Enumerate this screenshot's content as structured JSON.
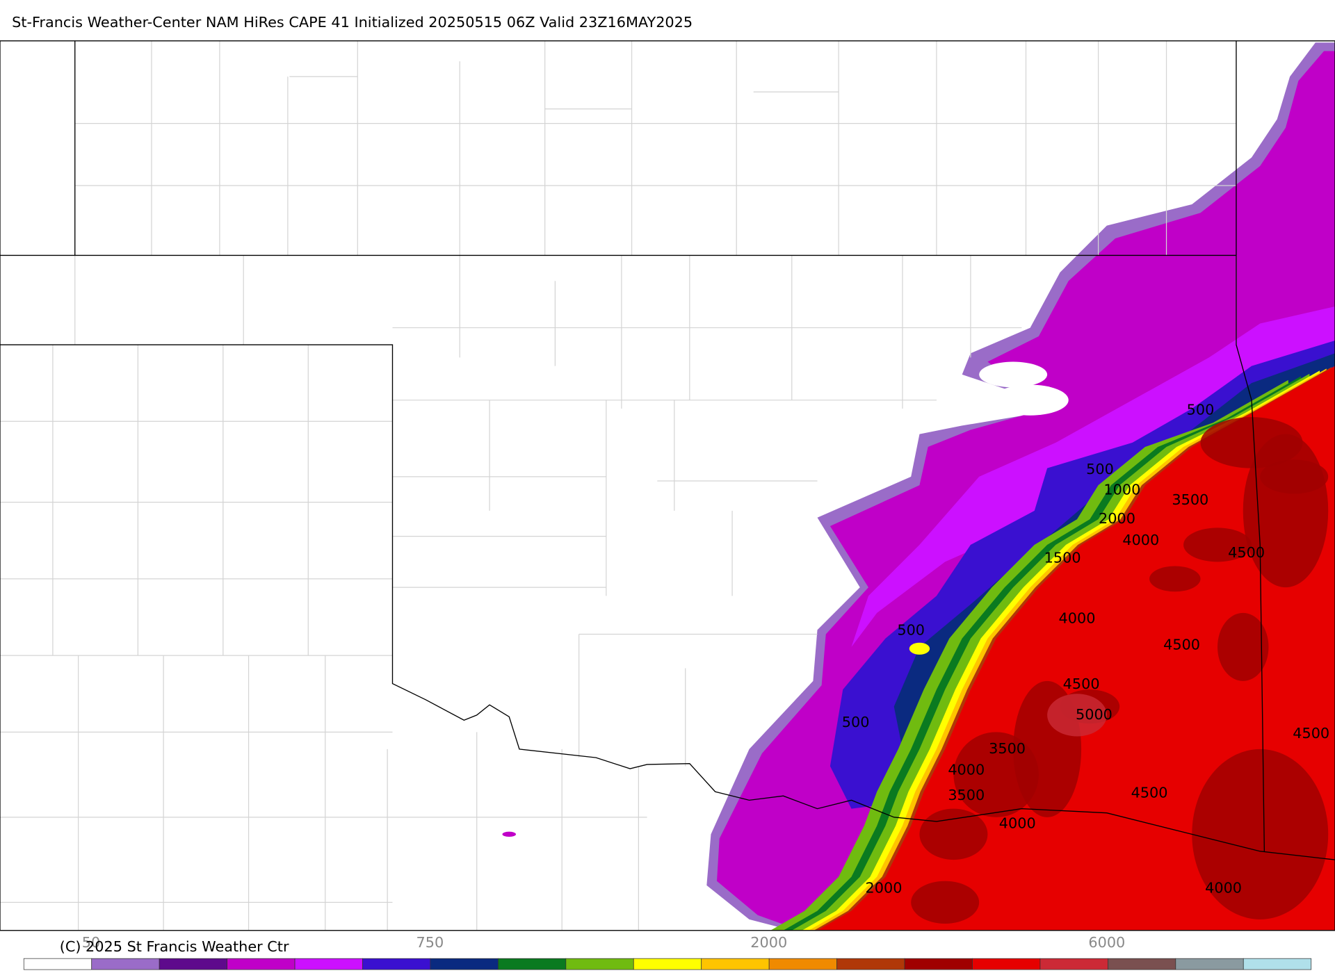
{
  "header": {
    "title": "St-Francis Weather-Center NAM HiRes CAPE  41 Initialized 20250515 06Z Valid 23Z16MAY2025"
  },
  "map": {
    "contour_labels": [
      500,
      500,
      1000,
      2000,
      3500,
      4000,
      4500,
      1500,
      4000,
      4500,
      500,
      4500,
      5000,
      4500,
      500,
      3500,
      4000,
      3500,
      4500,
      4000,
      2000,
      4000
    ]
  },
  "colorbar": {
    "colors": [
      "#ffffff",
      "#9a6cc8",
      "#5e0a8c",
      "#c000c8",
      "#cc10ff",
      "#3a10d0",
      "#0a2a80",
      "#0a7a20",
      "#70bb10",
      "#ffff00",
      "#ffc400",
      "#f08a00",
      "#b03808",
      "#a00000",
      "#e60000",
      "#cc2a36",
      "#7a5050",
      "#8a9aa0",
      "#b0e0ea"
    ],
    "labels": [
      50,
      750,
      2000,
      6000
    ]
  },
  "footer": {
    "copyright": "(C) 2025 St Francis Weather Ctr"
  }
}
